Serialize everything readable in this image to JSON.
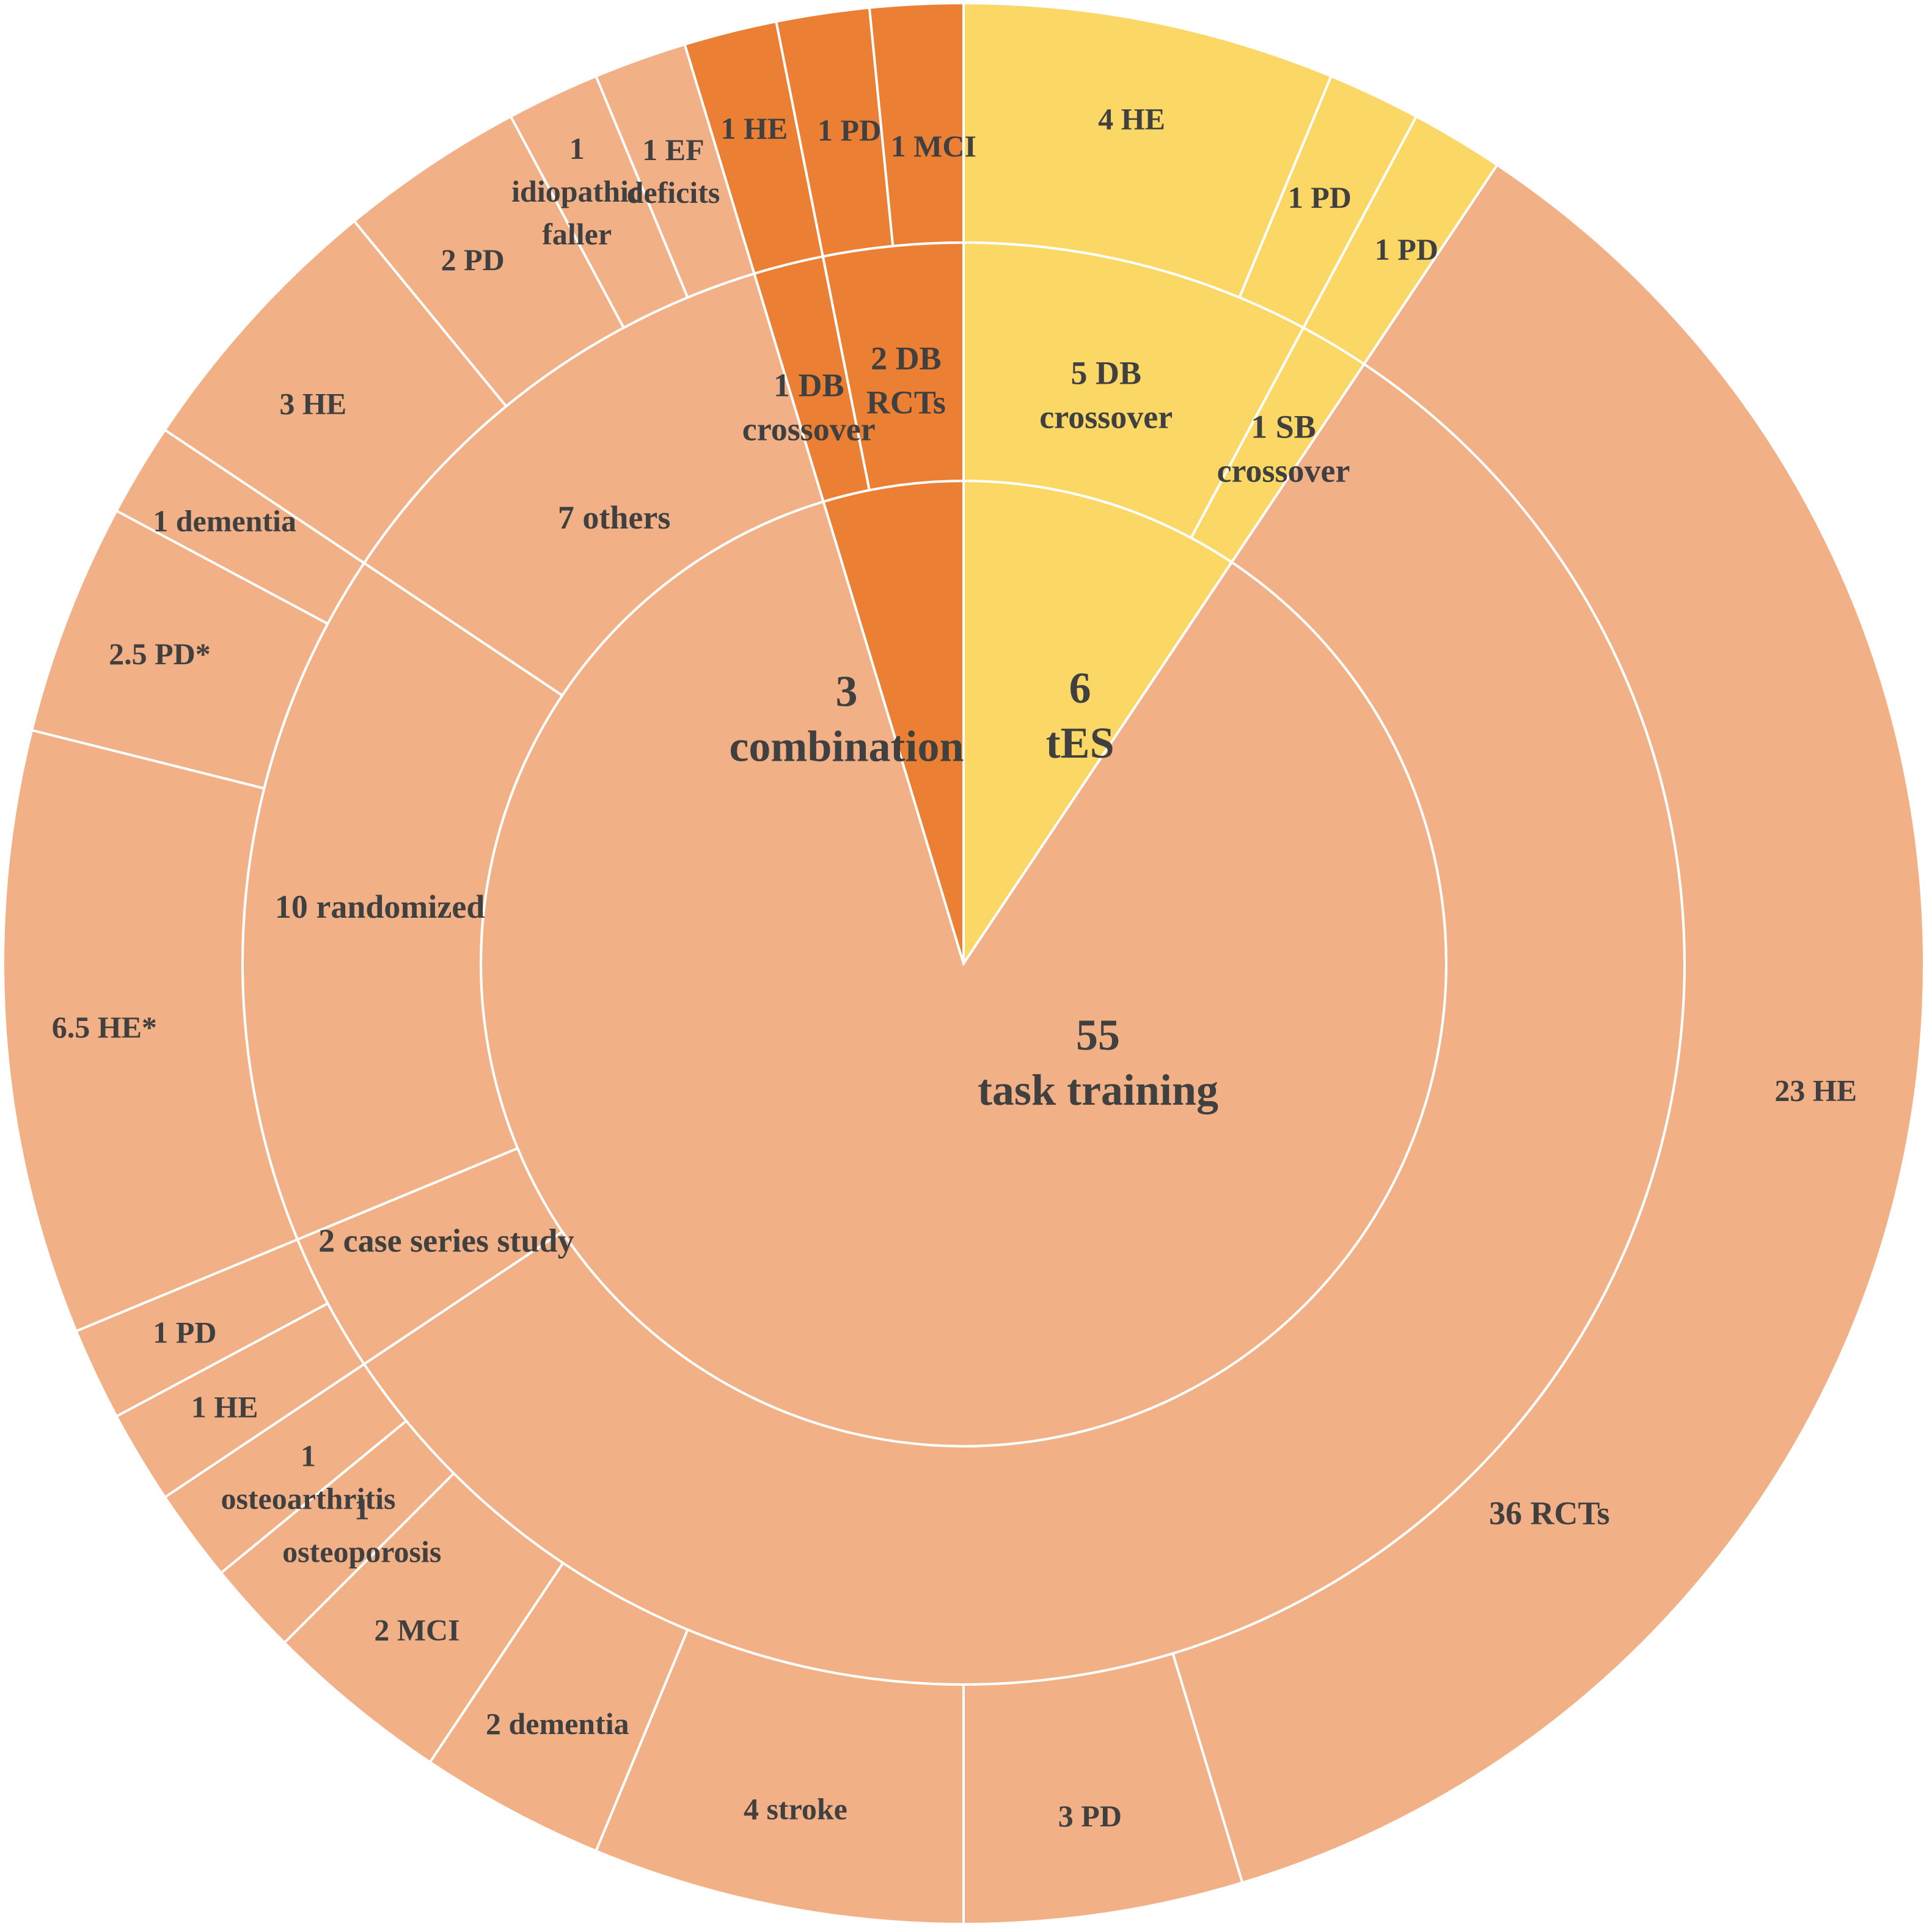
{
  "chart_data": {
    "type": "sunburst",
    "colors": {
      "task_training": "#F1B085",
      "combination": "#EB7F33",
      "tES": "#FBD766",
      "separator": "#FFFFFF",
      "text": "#404040"
    },
    "rings": [
      {
        "level": "intervention",
        "segments": [
          {
            "id": "tes",
            "group": "tES",
            "value": 6,
            "lines": [
              "6",
              "tES"
            ]
          },
          {
            "id": "task-training",
            "group": "task_training",
            "value": 55,
            "lines": [
              "55",
              "task training"
            ]
          },
          {
            "id": "combination",
            "group": "combination",
            "value": 3,
            "lines": [
              "3",
              "combination"
            ]
          }
        ]
      },
      {
        "level": "design",
        "segments": [
          {
            "id": "tes-5-db-crossover",
            "group": "tES",
            "value": 5,
            "lines": [
              "5 DB",
              "crossover"
            ]
          },
          {
            "id": "tes-1-sb-crossover",
            "group": "tES",
            "value": 1,
            "lines": [
              "1 SB",
              "crossover"
            ]
          },
          {
            "id": "tt-36-rcts",
            "group": "task_training",
            "value": 36,
            "lines": [
              "36 RCTs"
            ]
          },
          {
            "id": "tt-2-case-series",
            "group": "task_training",
            "value": 2,
            "lines": [
              "2 case series study"
            ]
          },
          {
            "id": "tt-10-randomized",
            "group": "task_training",
            "value": 10,
            "lines": [
              "10 randomized"
            ]
          },
          {
            "id": "tt-7-others",
            "group": "task_training",
            "value": 7,
            "lines": [
              "7 others"
            ]
          },
          {
            "id": "comb-1-db-crossover",
            "group": "combination",
            "value": 1,
            "lines": [
              "1 DB",
              "crossover"
            ]
          },
          {
            "id": "comb-2-db-rcts",
            "group": "combination",
            "value": 2,
            "lines": [
              "2 DB",
              "RCTs"
            ]
          }
        ]
      },
      {
        "level": "population",
        "segments": [
          {
            "id": "tes-4-he",
            "group": "tES",
            "value": 4,
            "lines": [
              "4 HE"
            ]
          },
          {
            "id": "tes-1-pd-a",
            "group": "tES",
            "value": 1,
            "lines": [
              "1 PD"
            ]
          },
          {
            "id": "tes-1-pd-b",
            "group": "tES",
            "value": 1,
            "lines": [
              "1 PD"
            ]
          },
          {
            "id": "tt-23-he",
            "group": "task_training",
            "value": 23,
            "lines": [
              "23 HE"
            ]
          },
          {
            "id": "tt-3-pd",
            "group": "task_training",
            "value": 3,
            "lines": [
              "3 PD"
            ]
          },
          {
            "id": "tt-4-stroke",
            "group": "task_training",
            "value": 4,
            "lines": [
              "4 stroke"
            ]
          },
          {
            "id": "tt-2-dementia",
            "group": "task_training",
            "value": 2,
            "lines": [
              "2 dementia"
            ]
          },
          {
            "id": "tt-2-mci",
            "group": "task_training",
            "value": 2,
            "lines": [
              "2 MCI"
            ]
          },
          {
            "id": "tt-1-osteoporosis",
            "group": "task_training",
            "value": 1,
            "lines": [
              "1",
              "osteoporosis"
            ]
          },
          {
            "id": "tt-1-osteoarthritis",
            "group": "task_training",
            "value": 1,
            "lines": [
              "1",
              "osteoarthritis"
            ]
          },
          {
            "id": "tt-1-he",
            "group": "task_training",
            "value": 1,
            "lines": [
              "1 HE"
            ]
          },
          {
            "id": "tt-1-pd",
            "group": "task_training",
            "value": 1,
            "lines": [
              "1 PD"
            ]
          },
          {
            "id": "tt-6-5-he",
            "group": "task_training",
            "value": 6.5,
            "lines": [
              "6.5 HE*"
            ]
          },
          {
            "id": "tt-2-5-pd",
            "group": "task_training",
            "value": 2.5,
            "lines": [
              "2.5 PD*"
            ]
          },
          {
            "id": "tt-1-dementia",
            "group": "task_training",
            "value": 1,
            "lines": [
              "1 dementia"
            ]
          },
          {
            "id": "tt-3-he",
            "group": "task_training",
            "value": 3,
            "lines": [
              "3 HE"
            ]
          },
          {
            "id": "tt-2-pd",
            "group": "task_training",
            "value": 2,
            "lines": [
              "2 PD"
            ]
          },
          {
            "id": "tt-1-idiopathic-faller",
            "group": "task_training",
            "value": 1,
            "lines": [
              "1",
              "idiopathic",
              "faller"
            ]
          },
          {
            "id": "tt-1-ef-deficits",
            "group": "task_training",
            "value": 1,
            "lines": [
              "1 EF",
              "deficits"
            ]
          },
          {
            "id": "comb-1-he",
            "group": "combination",
            "value": 1,
            "lines": [
              "1 HE"
            ]
          },
          {
            "id": "comb-1-pd",
            "group": "combination",
            "value": 1,
            "lines": [
              "1 PD"
            ]
          },
          {
            "id": "comb-1-mci",
            "group": "combination",
            "value": 1,
            "lines": [
              "1 MCI"
            ]
          }
        ]
      }
    ]
  }
}
